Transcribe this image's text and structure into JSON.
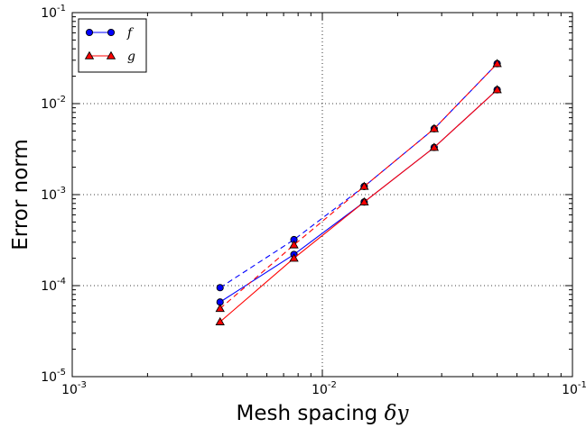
{
  "chart_data": {
    "type": "line",
    "title": "",
    "xlabel": "Mesh spacing",
    "xlabel_symbol": "δy",
    "ylabel": "Error norm",
    "xscale": "log",
    "yscale": "log",
    "xlim": [
      0.001,
      0.1
    ],
    "ylim": [
      1e-05,
      0.1
    ],
    "x_ticks": [
      {
        "base": "10",
        "exp": "-3",
        "value": 0.001
      },
      {
        "base": "10",
        "exp": "-2",
        "value": 0.01
      },
      {
        "base": "10",
        "exp": "-1",
        "value": 0.1
      }
    ],
    "y_ticks": [
      {
        "base": "10",
        "exp": "-5",
        "value": 1e-05
      },
      {
        "base": "10",
        "exp": "-4",
        "value": 0.0001
      },
      {
        "base": "10",
        "exp": "-3",
        "value": 0.001
      },
      {
        "base": "10",
        "exp": "-2",
        "value": 0.01
      },
      {
        "base": "10",
        "exp": "-1",
        "value": 0.1
      }
    ],
    "grid": "dotted major",
    "legend_position": "top-left",
    "legend": [
      {
        "label": "f",
        "color": "#0000ff",
        "marker": "circle"
      },
      {
        "label": "g",
        "color": "#ff0000",
        "marker": "triangle"
      }
    ],
    "series": [
      {
        "legend": "f",
        "style": "solid",
        "color": "#0000ff",
        "marker": "circle",
        "x": [
          0.0039,
          0.0077,
          0.0147,
          0.028,
          0.05
        ],
        "y": [
          6.6e-05,
          0.00022,
          0.00083,
          0.0033,
          0.0142
        ]
      },
      {
        "legend": "g",
        "style": "solid",
        "color": "#ff0000",
        "marker": "triangle",
        "x": [
          0.0039,
          0.0077,
          0.0147,
          0.028,
          0.05
        ],
        "y": [
          4e-05,
          0.0002,
          0.00083,
          0.0033,
          0.0142
        ]
      },
      {
        "legend": "f",
        "style": "dashed",
        "color": "#0000ff",
        "marker": "circle",
        "x": [
          0.0039,
          0.0077,
          0.0147,
          0.028,
          0.05
        ],
        "y": [
          9.5e-05,
          0.00032,
          0.00123,
          0.0053,
          0.0275
        ]
      },
      {
        "legend": "g",
        "style": "dashed",
        "color": "#ff0000",
        "marker": "triangle",
        "x": [
          0.0039,
          0.0077,
          0.0147,
          0.028,
          0.05
        ],
        "y": [
          5.6e-05,
          0.00028,
          0.00123,
          0.0053,
          0.0275
        ]
      }
    ]
  }
}
